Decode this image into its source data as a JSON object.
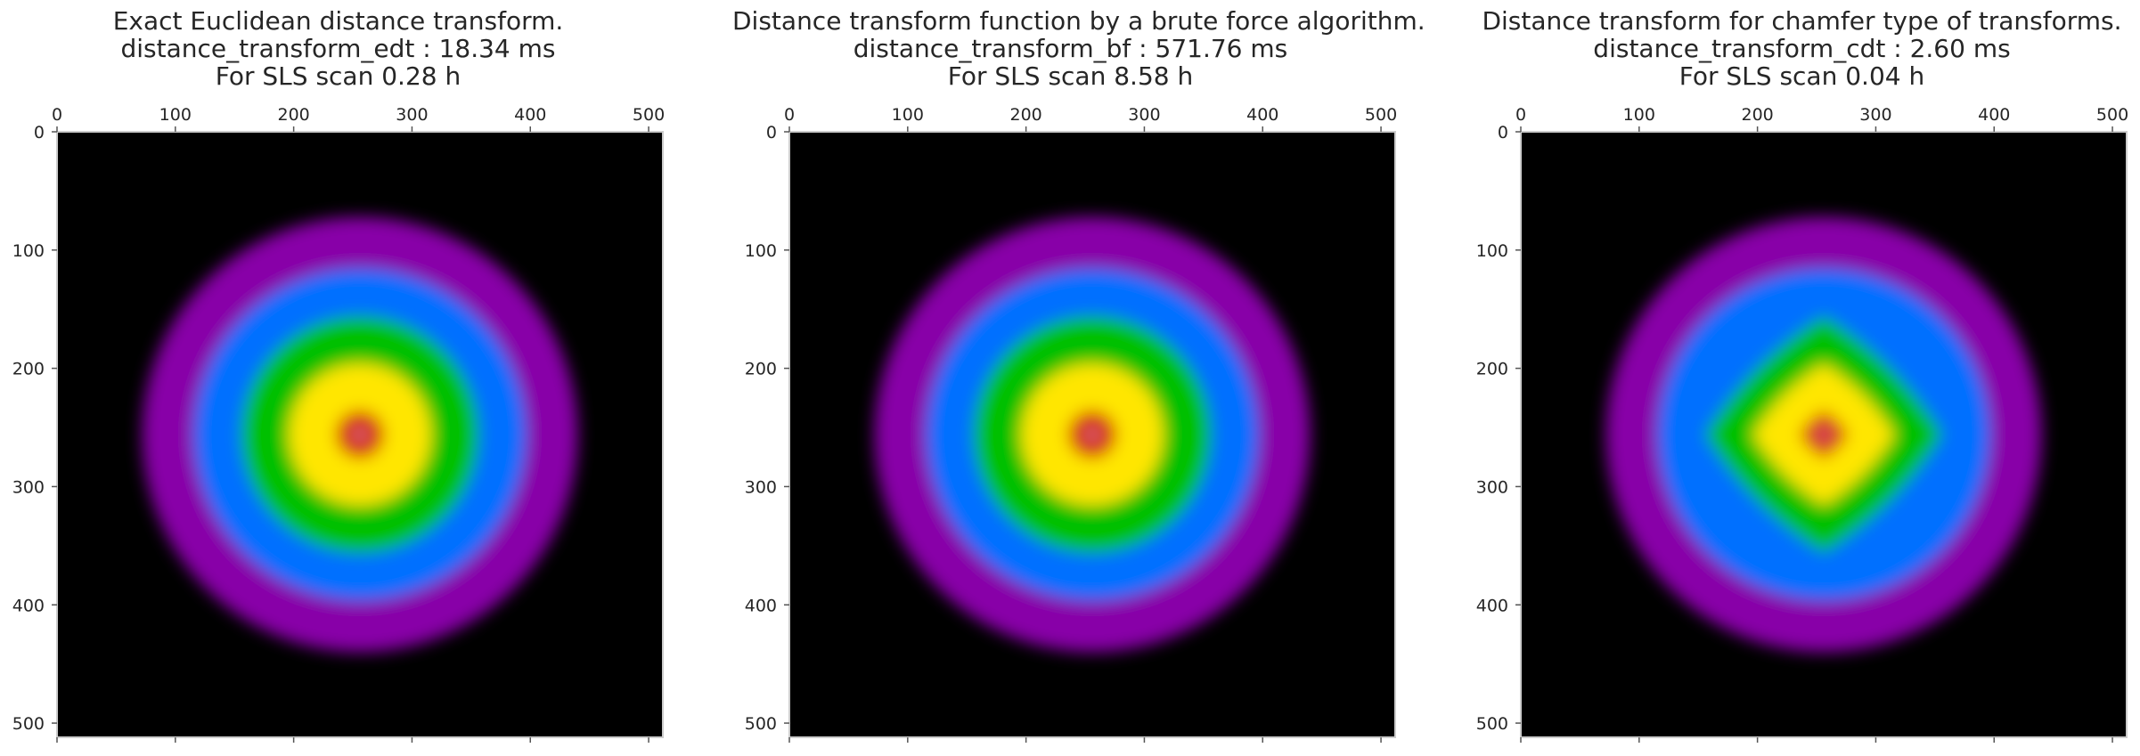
{
  "figure": {
    "background": "#ffffff",
    "axes_color": "#cccccc",
    "text_color": "#262626"
  },
  "chart_data": [
    {
      "type": "heatmap",
      "title_lines": [
        "Exact Euclidean distance transform.",
        "distance_transform_edt : 18.34 ms",
        "For SLS scan 0.28 h"
      ],
      "metric": "euclidean",
      "colormap": "nipy_spectral",
      "center": [
        256,
        256
      ],
      "rings": [
        {
          "value": 0
        },
        {
          "value": 20
        },
        {
          "value": 60
        },
        {
          "value": 100
        },
        {
          "value": 140
        },
        {
          "value": 184
        }
      ],
      "x_ticks": [
        0,
        100,
        200,
        300,
        400,
        500
      ],
      "y_ticks": [
        0,
        100,
        200,
        300,
        400,
        500
      ],
      "xlim": [
        0,
        512
      ],
      "ylim": [
        512,
        0
      ],
      "x_axis_position": "top",
      "grid": false
    },
    {
      "type": "heatmap",
      "title_lines": [
        "Distance transform function by a brute force algorithm.",
        "distance_transform_bf : 571.76 ms",
        "For SLS scan 8.58 h"
      ],
      "metric": "euclidean",
      "colormap": "nipy_spectral",
      "center": [
        256,
        256
      ],
      "rings": [
        {
          "value": 0
        },
        {
          "value": 20
        },
        {
          "value": 60
        },
        {
          "value": 100
        },
        {
          "value": 140
        },
        {
          "value": 184
        }
      ],
      "x_ticks": [
        0,
        100,
        200,
        300,
        400,
        500
      ],
      "y_ticks": [
        0,
        100,
        200,
        300,
        400,
        500
      ],
      "xlim": [
        0,
        512
      ],
      "ylim": [
        512,
        0
      ],
      "x_axis_position": "top",
      "grid": false
    },
    {
      "type": "heatmap",
      "title_lines": [
        "Distance transform for chamfer type of transforms.",
        "distance_transform_cdt : 2.60 ms",
        "For SLS scan 0.04 h"
      ],
      "metric": "chamfer",
      "colormap": "nipy_spectral",
      "center": [
        256,
        256
      ],
      "rings": [
        {
          "value": 0
        },
        {
          "value": 20
        },
        {
          "value": 60
        },
        {
          "value": 100
        },
        {
          "value": 140
        },
        {
          "value": 184
        }
      ],
      "x_ticks": [
        0,
        100,
        200,
        300,
        400,
        500
      ],
      "y_ticks": [
        0,
        100,
        200,
        300,
        400,
        500
      ],
      "xlim": [
        0,
        512
      ],
      "ylim": [
        512,
        0
      ],
      "x_axis_position": "top",
      "grid": false
    }
  ]
}
